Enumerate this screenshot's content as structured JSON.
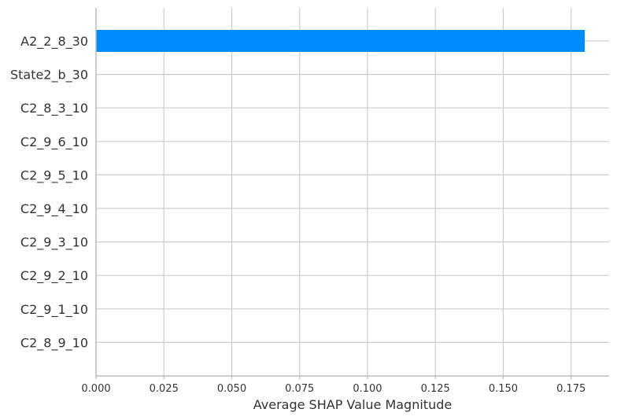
{
  "chart_data": {
    "type": "bar",
    "orientation": "horizontal",
    "title": "",
    "xlabel": "Average SHAP Value Magnitude",
    "ylabel": "",
    "categories": [
      "A2_2_8_30",
      "State2_b_30",
      "C2_8_3_10",
      "C2_9_6_10",
      "C2_9_5_10",
      "C2_9_4_10",
      "C2_9_3_10",
      "C2_9_2_10",
      "C2_9_1_10",
      "C2_8_9_10"
    ],
    "values": [
      0.18,
      0,
      0,
      0,
      0,
      0,
      0,
      0,
      0,
      0
    ],
    "xlim": [
      0,
      0.189
    ],
    "xticks": [
      0.0,
      0.025,
      0.05,
      0.075,
      0.1,
      0.125,
      0.15,
      0.175
    ],
    "xtick_labels": [
      "0.000",
      "0.025",
      "0.050",
      "0.075",
      "0.100",
      "0.125",
      "0.150",
      "0.175"
    ],
    "grid": true,
    "colors": {
      "bar": "#008bfb",
      "grid": "#cccccc",
      "axis": "#bbbbbb",
      "text": "#333333"
    }
  }
}
